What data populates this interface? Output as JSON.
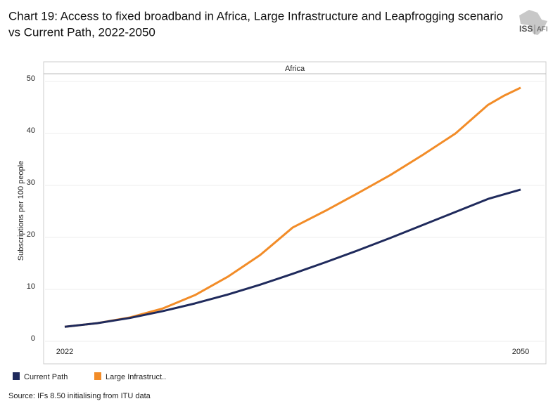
{
  "chart_data": {
    "type": "line",
    "title": [
      "Chart 19: Access to fixed broadband in Africa, Large Infrastructure and Leapfrogging scenario",
      "vs Current Path, 2022-2050"
    ],
    "logo": [
      "ISS",
      "AFI"
    ],
    "panel_title": "Africa",
    "y_label": "Subscriptions per 100 people",
    "source": "Source: IFs 8.50 initialising from ITU data",
    "x": [
      2022,
      2024,
      2026,
      2028,
      2030,
      2032,
      2034,
      2036,
      2038,
      2040,
      2042,
      2044,
      2046,
      2048,
      2049,
      2050
    ],
    "series": [
      {
        "name": "Current Path",
        "color": "#1f2a5c",
        "values": [
          2.8,
          3.5,
          4.5,
          5.8,
          7.3,
          9.0,
          10.9,
          13.0,
          15.2,
          17.5,
          19.9,
          22.4,
          24.9,
          27.4,
          28.3,
          29.2
        ]
      },
      {
        "name": "Large Infrastruct..",
        "color": "#f28c28",
        "values": [
          2.8,
          3.5,
          4.6,
          6.3,
          8.9,
          12.4,
          16.6,
          21.9,
          25.1,
          28.5,
          32.0,
          35.9,
          40.0,
          45.5,
          47.3,
          48.8
        ]
      }
    ],
    "xlim": [
      2022,
      2050
    ],
    "xticks": [
      2022,
      2050
    ],
    "ylim": [
      0,
      50
    ],
    "yticks": [
      0,
      10,
      20,
      30,
      40,
      50
    ],
    "grid": true
  }
}
